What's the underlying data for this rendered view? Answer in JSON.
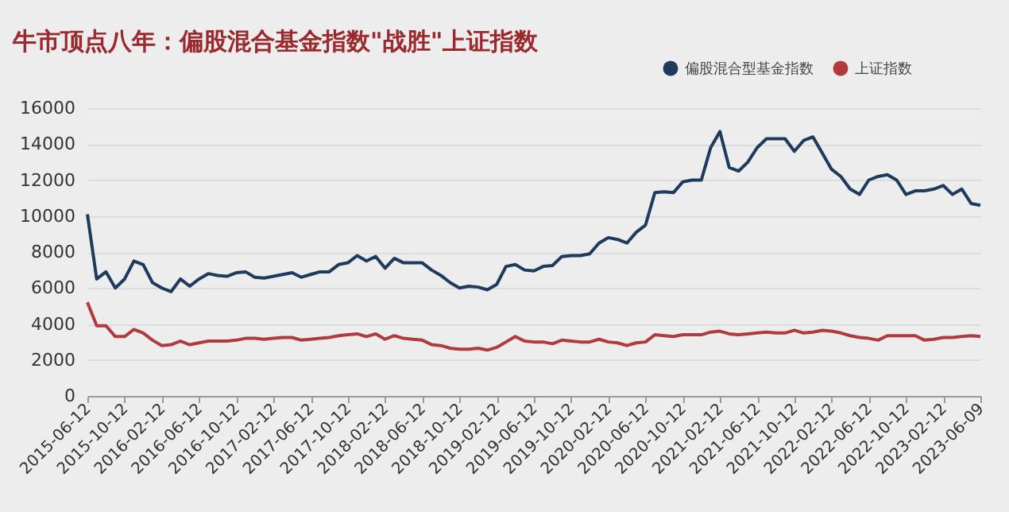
{
  "chart_data": {
    "type": "line",
    "title": "牛市顶点八年：偏股混合基金指数\"战胜\"上证指数",
    "categories": [
      "2015-06-12",
      null,
      null,
      null,
      "2015-10-12",
      null,
      null,
      null,
      "2016-02-12",
      null,
      null,
      null,
      "2016-06-12",
      null,
      null,
      null,
      "2016-10-12",
      null,
      null,
      null,
      "2017-02-12",
      null,
      null,
      null,
      "2017-06-12",
      null,
      null,
      null,
      "2017-10-12",
      null,
      null,
      null,
      "2018-02-12",
      null,
      null,
      null,
      "2018-06-12",
      null,
      null,
      null,
      "2018-10-12",
      null,
      null,
      null,
      "2019-02-12",
      null,
      null,
      null,
      "2019-06-12",
      null,
      null,
      null,
      "2019-10-12",
      null,
      null,
      null,
      "2020-02-12",
      null,
      null,
      null,
      "2020-06-12",
      null,
      null,
      null,
      "2020-10-12",
      null,
      null,
      null,
      "2021-02-12",
      null,
      null,
      null,
      "2021-06-12",
      null,
      null,
      null,
      "2021-10-12",
      null,
      null,
      null,
      "2022-02-12",
      null,
      null,
      null,
      "2022-06-12",
      null,
      null,
      null,
      "2022-10-12",
      null,
      null,
      null,
      "2023-02-12",
      null,
      null,
      null,
      "2023-06-09"
    ],
    "series": [
      {
        "name": "偏股混合型基金指数",
        "color": "#1e3a5c",
        "values": [
          10100,
          6500,
          6900,
          6000,
          6500,
          7500,
          7300,
          6300,
          6000,
          5800,
          6500,
          6100,
          6500,
          6800,
          6700,
          6650,
          6850,
          6900,
          6600,
          6550,
          6650,
          6750,
          6850,
          6600,
          6750,
          6900,
          6900,
          7300,
          7400,
          7800,
          7500,
          7750,
          7100,
          7650,
          7400,
          7400,
          7400,
          7000,
          6700,
          6300,
          6000,
          6100,
          6050,
          5900,
          6200,
          7200,
          7300,
          7000,
          6950,
          7200,
          7250,
          7750,
          7800,
          7800,
          7900,
          8500,
          8800,
          8700,
          8500,
          9100,
          9500,
          11300,
          11350,
          11300,
          11900,
          12000,
          12000,
          13800,
          14700,
          12700,
          12500,
          13000,
          13800,
          14300,
          14300,
          14300,
          13600,
          14200,
          14400,
          13500,
          12600,
          12200,
          11500,
          11200,
          12000,
          12200,
          12300,
          12000,
          11200,
          11400,
          11400,
          11500,
          11700,
          11200,
          11500,
          10700,
          10600
        ]
      },
      {
        "name": "上证指数",
        "color": "#b03a3e",
        "values": [
          5200,
          3900,
          3900,
          3300,
          3300,
          3700,
          3500,
          3100,
          2800,
          2850,
          3050,
          2850,
          2950,
          3050,
          3050,
          3050,
          3100,
          3200,
          3200,
          3150,
          3200,
          3250,
          3250,
          3100,
          3150,
          3200,
          3250,
          3350,
          3400,
          3450,
          3300,
          3450,
          3150,
          3350,
          3200,
          3150,
          3100,
          2850,
          2800,
          2650,
          2600,
          2600,
          2650,
          2550,
          2700,
          3000,
          3300,
          3050,
          3000,
          3000,
          2900,
          3100,
          3050,
          3000,
          3000,
          3150,
          3000,
          2950,
          2800,
          2950,
          3000,
          3400,
          3350,
          3300,
          3400,
          3400,
          3400,
          3550,
          3600,
          3450,
          3400,
          3450,
          3500,
          3550,
          3500,
          3500,
          3650,
          3500,
          3550,
          3650,
          3600,
          3500,
          3350,
          3250,
          3200,
          3100,
          3350,
          3350,
          3350,
          3350,
          3100,
          3150,
          3250,
          3250,
          3300,
          3350,
          3300
        ]
      }
    ],
    "ylim": [
      0,
      16000
    ],
    "yticks": [
      0,
      2000,
      4000,
      6000,
      8000,
      10000,
      12000,
      14000,
      16000
    ],
    "grid": "y",
    "legend": "top right"
  }
}
